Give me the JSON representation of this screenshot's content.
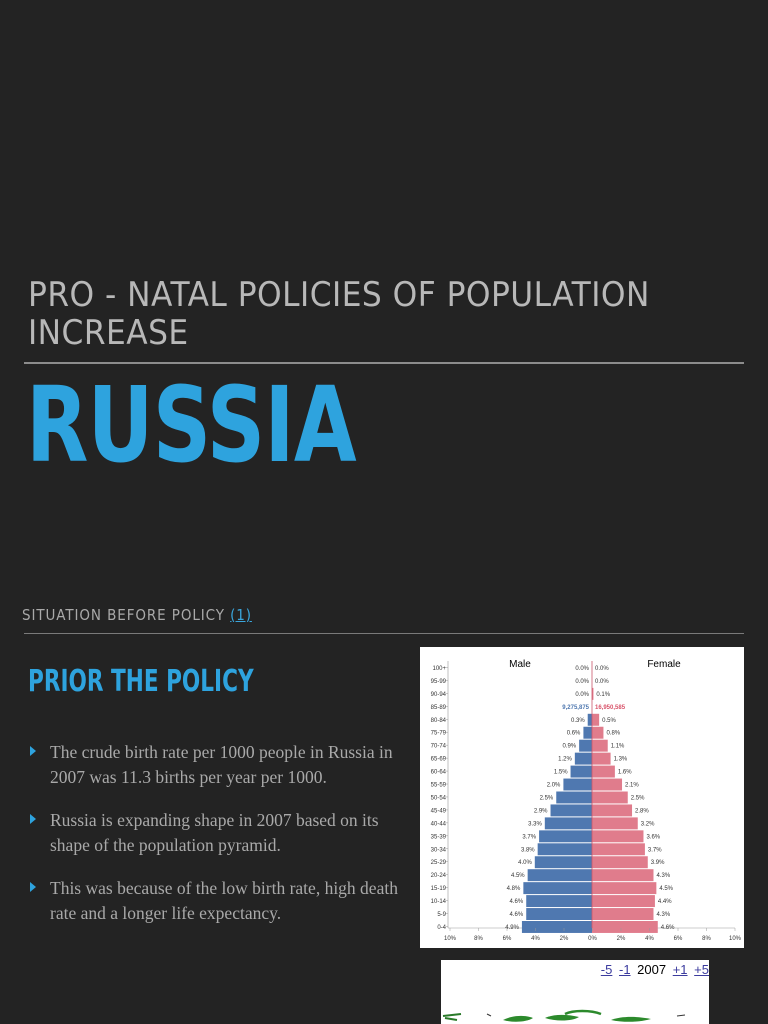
{
  "slide": {
    "subtitle": "PRO - NATAL POLICIES OF POPULATION INCREASE",
    "title": "RUSSIA",
    "section": {
      "label": "SITUATION BEFORE POLICY",
      "ref": "(1)"
    },
    "heading": "PRIOR THE POLICY",
    "bullets": [
      "The crude birth rate per 1000 people in Russia in 2007 was  11.3 births per  year per 1000.",
      "Russia is expanding shape in 2007 based on its shape of the population pyramid.",
      "This was because of the low birth rate, high death rate and a longer life expectancy."
    ],
    "accent_color": "#2ea3de"
  },
  "map_nav": {
    "prev5": "-5",
    "prev1": "-1",
    "year": "2007",
    "next1": "+1",
    "next5": "+5"
  },
  "chart_data": {
    "type": "bar",
    "orientation": "horizontal-population-pyramid",
    "categories": [
      "100+",
      "95-99",
      "90-94",
      "85-89",
      "80-84",
      "75-79",
      "70-74",
      "65-69",
      "60-64",
      "55-59",
      "50-54",
      "45-49",
      "40-44",
      "35-39",
      "30-34",
      "25-29",
      "20-24",
      "15-19",
      "10-14",
      "5-9",
      "0-4"
    ],
    "series": [
      {
        "name": "Male",
        "color": "#4f78b0",
        "values": [
          0.0,
          0.0,
          0.0,
          null,
          0.3,
          0.6,
          0.9,
          1.2,
          1.5,
          2.0,
          2.5,
          2.9,
          3.3,
          3.7,
          3.8,
          4.0,
          4.5,
          4.8,
          4.6,
          4.6,
          4.9
        ],
        "labels": [
          "0.0%",
          "0.0%",
          "0.0%",
          "9,275,875",
          "0.3%",
          "0.6%",
          "0.9%",
          "1.2%",
          "1.5%",
          "2.0%",
          "2.5%",
          "2.9%",
          "3.3%",
          "3.7%",
          "3.8%",
          "4.0%",
          "4.5%",
          "4.8%",
          "4.6%",
          "4.6%",
          "4.9%"
        ]
      },
      {
        "name": "Female",
        "color": "#e07c8c",
        "values": [
          0.0,
          0.0,
          0.1,
          null,
          0.5,
          0.8,
          1.1,
          1.3,
          1.6,
          2.1,
          2.5,
          2.8,
          3.2,
          3.6,
          3.7,
          3.9,
          4.3,
          4.5,
          4.4,
          4.3,
          4.6
        ],
        "labels": [
          "0.0%",
          "0.0%",
          "0.1%",
          "16,950,585",
          "0.5%",
          "0.8%",
          "1.1%",
          "1.3%",
          "1.6%",
          "2.1%",
          "2.5%",
          "2.8%",
          "3.2%",
          "3.6%",
          "3.7%",
          "3.9%",
          "4.3%",
          "4.5%",
          "4.4%",
          "4.3%",
          "4.6%"
        ]
      }
    ],
    "x_ticks": [
      "10%",
      "8%",
      "6%",
      "4%",
      "2%",
      "0%",
      "2%",
      "4%",
      "6%",
      "8%",
      "10%"
    ],
    "xlim": [
      -10,
      10
    ],
    "legend": [
      "Male",
      "Female"
    ]
  }
}
